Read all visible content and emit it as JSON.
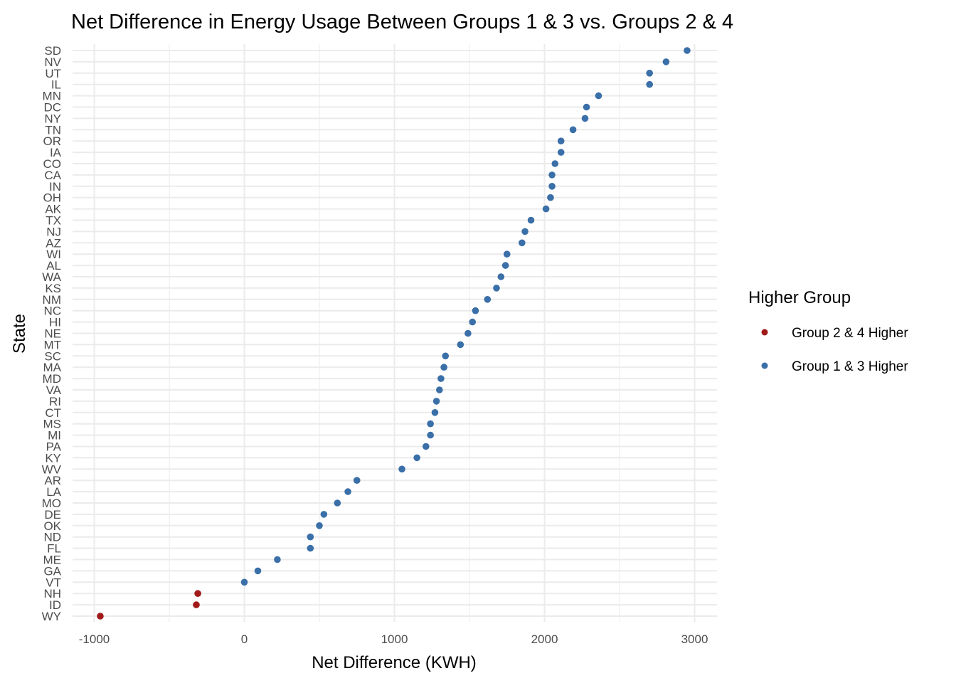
{
  "chart_data": {
    "type": "scatter",
    "title": "Net Difference in Energy Usage Between Groups 1 & 3 vs. Groups 2 & 4",
    "xlabel": "Net Difference (KWH)",
    "ylabel": "State",
    "xlim": [
      -1000,
      3000
    ],
    "xticks": [
      -1000,
      0,
      1000,
      2000,
      3000
    ],
    "xtick_labels": [
      "-1000",
      "0",
      "1000",
      "2000",
      "3000"
    ],
    "grid": true,
    "legend": {
      "title": "Higher Group",
      "placement": "right",
      "entries": [
        {
          "label": "Group 2 & 4 Higher",
          "color": "#a11a1a"
        },
        {
          "label": "Group 1 & 3 Higher",
          "color": "#3a6fa8"
        }
      ]
    },
    "points": [
      {
        "state": "SD",
        "value": 2950,
        "group": "Group 1 & 3 Higher"
      },
      {
        "state": "NV",
        "value": 2810,
        "group": "Group 1 & 3 Higher"
      },
      {
        "state": "UT",
        "value": 2700,
        "group": "Group 1 & 3 Higher"
      },
      {
        "state": "IL",
        "value": 2700,
        "group": "Group 1 & 3 Higher"
      },
      {
        "state": "MN",
        "value": 2360,
        "group": "Group 1 & 3 Higher"
      },
      {
        "state": "DC",
        "value": 2280,
        "group": "Group 1 & 3 Higher"
      },
      {
        "state": "NY",
        "value": 2270,
        "group": "Group 1 & 3 Higher"
      },
      {
        "state": "TN",
        "value": 2190,
        "group": "Group 1 & 3 Higher"
      },
      {
        "state": "OR",
        "value": 2110,
        "group": "Group 1 & 3 Higher"
      },
      {
        "state": "IA",
        "value": 2110,
        "group": "Group 1 & 3 Higher"
      },
      {
        "state": "CO",
        "value": 2070,
        "group": "Group 1 & 3 Higher"
      },
      {
        "state": "CA",
        "value": 2050,
        "group": "Group 1 & 3 Higher"
      },
      {
        "state": "IN",
        "value": 2050,
        "group": "Group 1 & 3 Higher"
      },
      {
        "state": "OH",
        "value": 2040,
        "group": "Group 1 & 3 Higher"
      },
      {
        "state": "AK",
        "value": 2010,
        "group": "Group 1 & 3 Higher"
      },
      {
        "state": "TX",
        "value": 1910,
        "group": "Group 1 & 3 Higher"
      },
      {
        "state": "NJ",
        "value": 1870,
        "group": "Group 1 & 3 Higher"
      },
      {
        "state": "AZ",
        "value": 1850,
        "group": "Group 1 & 3 Higher"
      },
      {
        "state": "WI",
        "value": 1750,
        "group": "Group 1 & 3 Higher"
      },
      {
        "state": "AL",
        "value": 1740,
        "group": "Group 1 & 3 Higher"
      },
      {
        "state": "WA",
        "value": 1710,
        "group": "Group 1 & 3 Higher"
      },
      {
        "state": "KS",
        "value": 1680,
        "group": "Group 1 & 3 Higher"
      },
      {
        "state": "NM",
        "value": 1620,
        "group": "Group 1 & 3 Higher"
      },
      {
        "state": "NC",
        "value": 1540,
        "group": "Group 1 & 3 Higher"
      },
      {
        "state": "HI",
        "value": 1520,
        "group": "Group 1 & 3 Higher"
      },
      {
        "state": "NE",
        "value": 1490,
        "group": "Group 1 & 3 Higher"
      },
      {
        "state": "MT",
        "value": 1440,
        "group": "Group 1 & 3 Higher"
      },
      {
        "state": "SC",
        "value": 1340,
        "group": "Group 1 & 3 Higher"
      },
      {
        "state": "MA",
        "value": 1330,
        "group": "Group 1 & 3 Higher"
      },
      {
        "state": "MD",
        "value": 1310,
        "group": "Group 1 & 3 Higher"
      },
      {
        "state": "VA",
        "value": 1300,
        "group": "Group 1 & 3 Higher"
      },
      {
        "state": "RI",
        "value": 1280,
        "group": "Group 1 & 3 Higher"
      },
      {
        "state": "CT",
        "value": 1270,
        "group": "Group 1 & 3 Higher"
      },
      {
        "state": "MS",
        "value": 1240,
        "group": "Group 1 & 3 Higher"
      },
      {
        "state": "MI",
        "value": 1240,
        "group": "Group 1 & 3 Higher"
      },
      {
        "state": "PA",
        "value": 1210,
        "group": "Group 1 & 3 Higher"
      },
      {
        "state": "KY",
        "value": 1150,
        "group": "Group 1 & 3 Higher"
      },
      {
        "state": "WV",
        "value": 1050,
        "group": "Group 1 & 3 Higher"
      },
      {
        "state": "AR",
        "value": 750,
        "group": "Group 1 & 3 Higher"
      },
      {
        "state": "LA",
        "value": 690,
        "group": "Group 1 & 3 Higher"
      },
      {
        "state": "MO",
        "value": 620,
        "group": "Group 1 & 3 Higher"
      },
      {
        "state": "DE",
        "value": 530,
        "group": "Group 1 & 3 Higher"
      },
      {
        "state": "OK",
        "value": 500,
        "group": "Group 1 & 3 Higher"
      },
      {
        "state": "ND",
        "value": 440,
        "group": "Group 1 & 3 Higher"
      },
      {
        "state": "FL",
        "value": 440,
        "group": "Group 1 & 3 Higher"
      },
      {
        "state": "ME",
        "value": 220,
        "group": "Group 1 & 3 Higher"
      },
      {
        "state": "GA",
        "value": 90,
        "group": "Group 1 & 3 Higher"
      },
      {
        "state": "VT",
        "value": 0,
        "group": "Group 1 & 3 Higher"
      },
      {
        "state": "NH",
        "value": -310,
        "group": "Group 2 & 4 Higher"
      },
      {
        "state": "ID",
        "value": -320,
        "group": "Group 2 & 4 Higher"
      },
      {
        "state": "WY",
        "value": -960,
        "group": "Group 2 & 4 Higher"
      }
    ]
  }
}
